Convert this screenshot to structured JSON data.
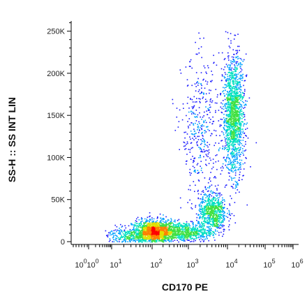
{
  "chart_data": {
    "type": "scatter",
    "title": "",
    "xlabel": "CD170 PE",
    "ylabel": "SS-H :: SS INT LIN",
    "x_scale": "log",
    "y_scale": "linear",
    "xlim": [
      1,
      1000000
    ],
    "ylim": [
      0,
      262144
    ],
    "x_ticks": [
      {
        "value": 1,
        "base": "10",
        "exp": "0"
      },
      {
        "value": 10,
        "base": "10",
        "exp": "1"
      },
      {
        "value": 100,
        "base": "10",
        "exp": "2"
      },
      {
        "value": 1000,
        "base": "10",
        "exp": "3"
      },
      {
        "value": 10000,
        "base": "10",
        "exp": "4"
      },
      {
        "value": 100000,
        "base": "10",
        "exp": "5"
      },
      {
        "value": 1000000,
        "base": "10",
        "exp": "6"
      }
    ],
    "x_zero_label": {
      "base": "10",
      "exp": "0"
    },
    "y_ticks": [
      {
        "value": 0,
        "label": "0"
      },
      {
        "value": 50000,
        "label": "50K"
      },
      {
        "value": 100000,
        "label": "100K"
      },
      {
        "value": 150000,
        "label": "150K"
      },
      {
        "value": 200000,
        "label": "200K"
      },
      {
        "value": 250000,
        "label": "250K"
      }
    ],
    "grid": false,
    "legend": "none",
    "density_colormap": [
      "#1a1aff",
      "#00a0ff",
      "#00e0c0",
      "#40e040",
      "#e0e000",
      "#ff8000",
      "#ff0000"
    ],
    "populations": [
      {
        "x_log10_center": 2.05,
        "y_center": 12000,
        "x_log10_sd": 0.28,
        "y_sd": 7000,
        "weight": 0.3
      },
      {
        "x_log10_center": 2.9,
        "y_center": 12000,
        "x_log10_sd": 0.35,
        "y_sd": 6000,
        "weight": 0.12
      },
      {
        "x_log10_center": 3.6,
        "y_center": 35000,
        "x_log10_sd": 0.18,
        "y_sd": 12000,
        "weight": 0.14
      },
      {
        "x_log10_center": 4.15,
        "y_center": 150000,
        "x_log10_sd": 0.14,
        "y_sd": 35000,
        "weight": 0.3
      },
      {
        "x_log10_center": 3.3,
        "y_center": 130000,
        "x_log10_sd": 0.25,
        "y_sd": 45000,
        "weight": 0.08
      },
      {
        "x_log10_center": 1.5,
        "y_center": 6000,
        "x_log10_sd": 0.35,
        "y_sd": 5000,
        "weight": 0.06
      }
    ]
  }
}
